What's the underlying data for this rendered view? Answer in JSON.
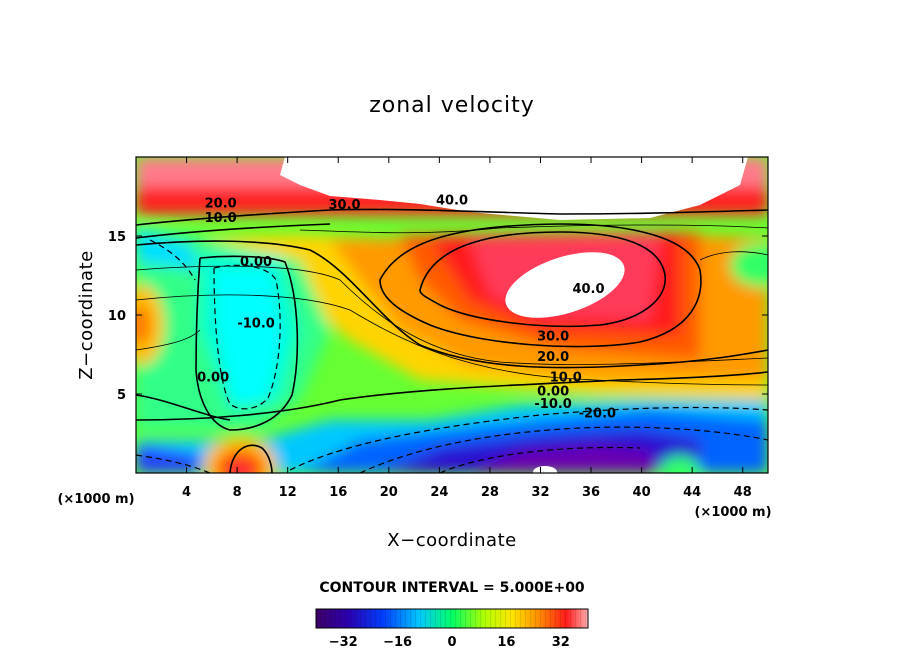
{
  "chart_data": {
    "type": "heatmap",
    "title": "zonal velocity",
    "xlabel": "X−coordinate",
    "ylabel": "Z−coordinate",
    "x_unit": "(×1000 m)",
    "y_unit": "(×1000 m)",
    "xlim": [
      0,
      50
    ],
    "ylim": [
      0,
      20
    ],
    "x_ticks": [
      "4",
      "8",
      "12",
      "16",
      "20",
      "24",
      "28",
      "32",
      "36",
      "40",
      "44",
      "48"
    ],
    "x_tick_values": [
      4,
      8,
      12,
      16,
      20,
      24,
      28,
      32,
      36,
      40,
      44,
      48
    ],
    "y_ticks": [
      "5",
      "10",
      "15"
    ],
    "y_tick_values": [
      5,
      10,
      15
    ],
    "contour_interval_text": "CONTOUR INTERVAL = 5.000E+00",
    "colorbar": {
      "ticks": [
        "−32",
        "−16",
        "0",
        "16",
        "32"
      ],
      "tick_values": [
        -32,
        -16,
        0,
        16,
        32
      ],
      "range": [
        -40,
        40
      ]
    },
    "contour_labels": [
      {
        "text": "20.0",
        "x": 6.7,
        "z": 16.8
      },
      {
        "text": "10.0",
        "x": 6.7,
        "z": 15.9
      },
      {
        "text": "30.0",
        "x": 16.5,
        "z": 16.7
      },
      {
        "text": "40.0",
        "x": 25.0,
        "z": 17.0
      },
      {
        "text": "0.00",
        "x": 9.5,
        "z": 13.1
      },
      {
        "text": "-10.0",
        "x": 9.5,
        "z": 9.2
      },
      {
        "text": "0.00",
        "x": 6.1,
        "z": 5.8
      },
      {
        "text": "40.0",
        "x": 35.8,
        "z": 11.4
      },
      {
        "text": "30.0",
        "x": 33.0,
        "z": 8.4
      },
      {
        "text": "20.0",
        "x": 33.0,
        "z": 7.1
      },
      {
        "text": "10.0",
        "x": 34.0,
        "z": 5.8
      },
      {
        "text": "0.00",
        "x": 33.0,
        "z": 4.9
      },
      {
        "text": "-10.0",
        "x": 33.0,
        "z": 4.1
      },
      {
        "text": "-20.0",
        "x": 36.5,
        "z": 3.5
      }
    ]
  }
}
